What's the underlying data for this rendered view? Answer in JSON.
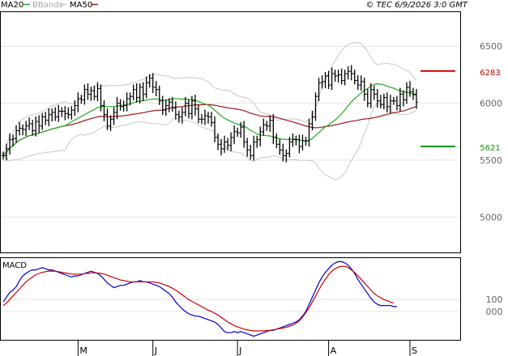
{
  "header": {
    "legend": [
      {
        "name": "MA20",
        "color": "#22aa22"
      },
      {
        "name": "BBands",
        "color": "#c8c8c8"
      },
      {
        "name": "MA50",
        "color": "#9b1b1b"
      }
    ],
    "timestamp": "© TEC 6/9/2026 3:0 GMT"
  },
  "chart_data": [
    {
      "type": "line",
      "title": "",
      "y_ticks": [
        "6500",
        "6000",
        "5500",
        "5000"
      ],
      "ylim": [
        4690,
        6800
      ],
      "x_ticks": [
        "M",
        "J",
        "J",
        "A",
        "S"
      ],
      "x_tick_index": [
        23,
        46,
        72,
        100,
        125
      ],
      "levels": [
        {
          "label": "6283",
          "value": 6283,
          "color": "#cc0000"
        },
        {
          "label": "5621",
          "value": 5621,
          "color": "#009900"
        }
      ],
      "close": [
        5540,
        5600,
        5680,
        5690,
        5760,
        5780,
        5770,
        5800,
        5820,
        5760,
        5840,
        5800,
        5880,
        5850,
        5900,
        5920,
        5880,
        5930,
        5930,
        5910,
        5900,
        5940,
        5980,
        6040,
        6030,
        6120,
        6080,
        6110,
        6060,
        6130,
        5980,
        5900,
        5800,
        5860,
        5920,
        6000,
        5970,
        5980,
        6040,
        6060,
        6120,
        6050,
        6140,
        6080,
        6180,
        6220,
        6140,
        6120,
        6020,
        5940,
        5980,
        6010,
        5960,
        5900,
        5880,
        5920,
        6000,
        5910,
        6020,
        5950,
        5860,
        5860,
        5890,
        5880,
        5830,
        5700,
        5640,
        5600,
        5660,
        5630,
        5700,
        5750,
        5740,
        5790,
        5660,
        5590,
        5540,
        5660,
        5680,
        5750,
        5810,
        5800,
        5850,
        5700,
        5640,
        5590,
        5540,
        5560,
        5660,
        5680,
        5680,
        5620,
        5670,
        5670,
        5820,
        5880,
        6060,
        6180,
        6190,
        6240,
        6160,
        6260,
        6240,
        6250,
        6200,
        6260,
        6280,
        6260,
        6200,
        6160,
        6190,
        6080,
        6000,
        6120,
        6080,
        6020,
        5990,
        6050,
        5970,
        6020,
        6020,
        5980,
        6080,
        6030,
        6140,
        6100,
        6080,
        6010
      ]
    },
    {
      "type": "line",
      "title": "MACD",
      "y_ticks": [
        "100",
        "000"
      ],
      "ylim": [
        -240,
        450
      ],
      "series": [
        {
          "name": "",
          "color": "#0000cc",
          "values": [
            80,
            120,
            160,
            180,
            210,
            260,
            300,
            320,
            340,
            350,
            350,
            360,
            370,
            360,
            350,
            350,
            340,
            330,
            320,
            310,
            300,
            290,
            300,
            300,
            310,
            320,
            330,
            340,
            330,
            320,
            300,
            270,
            240,
            220,
            200,
            210,
            220,
            220,
            230,
            240,
            250,
            250,
            260,
            250,
            250,
            240,
            230,
            220,
            210,
            190,
            170,
            150,
            120,
            80,
            50,
            20,
            0,
            -20,
            -30,
            -40,
            -40,
            -50,
            -60,
            -70,
            -80,
            -90,
            -110,
            -140,
            -170,
            -180,
            -180,
            -170,
            -180,
            -170,
            -180,
            -190,
            -200,
            -210,
            -200,
            -190,
            -180,
            -170,
            -160,
            -160,
            -150,
            -140,
            -130,
            -120,
            -110,
            -100,
            -90,
            -70,
            -40,
            0,
            60,
            120,
            180,
            240,
            290,
            330,
            360,
            390,
            410,
            420,
            420,
            410,
            390,
            360,
            320,
            270,
            230,
            190,
            150,
            110,
            80,
            60,
            50,
            50,
            50,
            50,
            40,
            40
          ]
        },
        {
          "name": "",
          "color": "#cc0000",
          "values": [
            50,
            70,
            100,
            130,
            160,
            190,
            220,
            250,
            270,
            290,
            310,
            320,
            330,
            335,
            340,
            340,
            340,
            335,
            330,
            325,
            320,
            315,
            315,
            315,
            315,
            320,
            320,
            325,
            325,
            325,
            320,
            315,
            305,
            295,
            285,
            275,
            265,
            260,
            255,
            250,
            250,
            250,
            250,
            250,
            250,
            250,
            250,
            245,
            240,
            230,
            220,
            210,
            195,
            180,
            160,
            140,
            120,
            100,
            85,
            70,
            55,
            40,
            25,
            10,
            0,
            -15,
            -30,
            -50,
            -70,
            -90,
            -105,
            -120,
            -130,
            -140,
            -150,
            -155,
            -160,
            -165,
            -165,
            -165,
            -165,
            -160,
            -160,
            -155,
            -150,
            -145,
            -140,
            -135,
            -125,
            -115,
            -100,
            -80,
            -50,
            -10,
            30,
            80,
            130,
            180,
            230,
            270,
            310,
            340,
            360,
            375,
            380,
            380,
            370,
            350,
            330,
            300,
            270,
            240,
            210,
            180,
            150,
            130,
            115,
            100,
            90,
            80,
            70
          ]
        }
      ]
    }
  ]
}
